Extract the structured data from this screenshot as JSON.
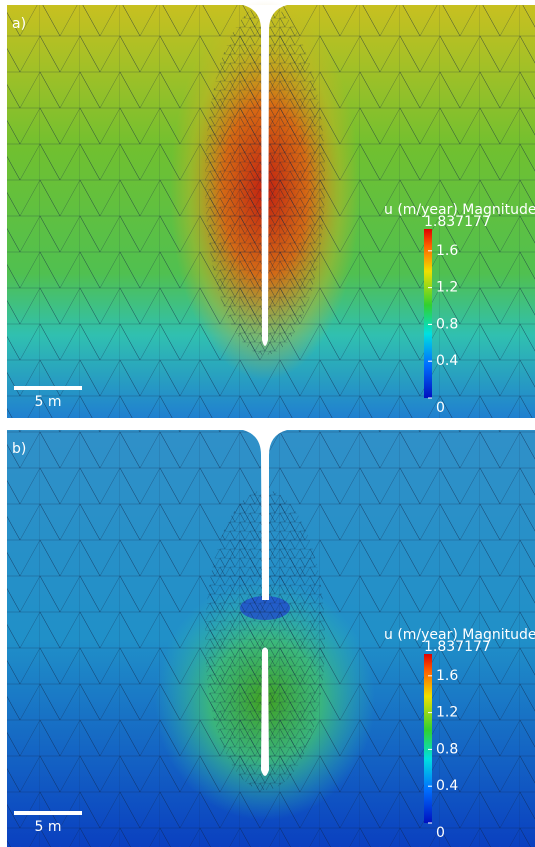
{
  "panels": [
    {
      "label": "a)",
      "scale_bar": "5 m",
      "colorbar": {
        "title": "u (m/year) Magnitude",
        "max": 1.837177,
        "min": 0,
        "ticks": [
          0,
          0.4,
          0.8,
          1.2,
          1.6
        ]
      }
    },
    {
      "label": "b)",
      "scale_bar": "5 m",
      "colorbar": {
        "title": "u (m/year) Magnitude",
        "max": 1.837177,
        "min": 0,
        "ticks": [
          0,
          0.4,
          0.8,
          1.2,
          1.6
        ]
      }
    }
  ]
}
